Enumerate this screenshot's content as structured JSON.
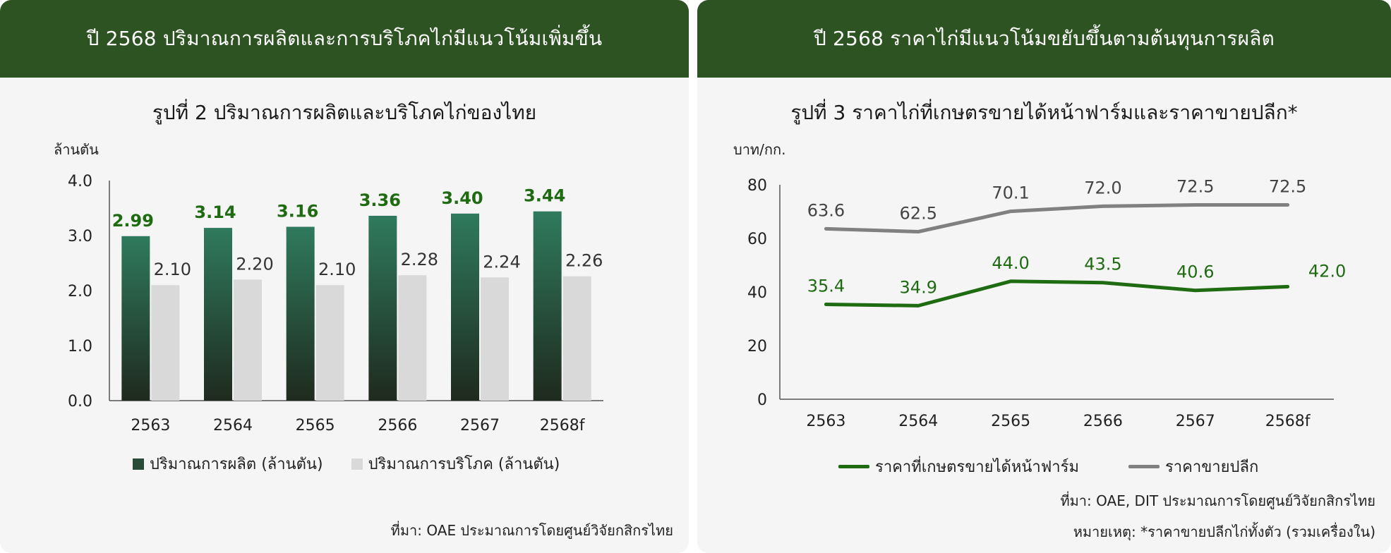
{
  "left": {
    "header": "ปี 2568 ปริมาณการผลิตและการบริโภคไก่มีแนวโน้มเพิ่มขึ้น",
    "figure_title": "รูปที่ 2  ปริมาณการผลิตและบริโภคไก่ของไทย",
    "unit": "ล้านตัน",
    "source": "ที่มา: OAE ประมาณการโดยศูนย์วิจัยกสิกรไทย"
  },
  "right": {
    "header": "ปี 2568 ราคาไก่มีแนวโน้มขยับขึ้นตามต้นทุนการผลิต",
    "figure_title": "รูปที่ 3 ราคาไก่ที่เกษตรขายได้หน้าฟาร์มและราคาขายปลีก*",
    "unit": "บาท/กก.",
    "source": "ที่มา: OAE, DIT ประมาณการโดยศูนย์วิจัยกสิกรไทย",
    "note": "หมายเหตุ: *ราคาขายปลีกไก่ทั้งตัว (รวมเครื่องใน)"
  },
  "chart_data": [
    {
      "type": "bar",
      "title": "รูปที่ 2  ปริมาณการผลิตและบริโภคไก่ของไทย",
      "ylabel": "ล้านตัน",
      "categories": [
        "2563",
        "2564",
        "2565",
        "2566",
        "2567",
        "2568f"
      ],
      "ylim": [
        0,
        4
      ],
      "yticks": [
        "0.0",
        "1.0",
        "2.0",
        "3.0",
        "4.0"
      ],
      "series": [
        {
          "name": "ปริมาณการผลิต (ล้านตัน)",
          "values": [
            2.99,
            3.14,
            3.16,
            3.36,
            3.4,
            3.44
          ],
          "labels": [
            "2.99",
            "3.14",
            "3.16",
            "3.36",
            "3.40",
            "3.44"
          ],
          "color": "#2f7a5e",
          "label_color": "#1e6b12"
        },
        {
          "name": "ปริมาณการบริโภค (ล้านตัน)",
          "values": [
            2.1,
            2.2,
            2.1,
            2.28,
            2.24,
            2.26
          ],
          "labels": [
            "2.10",
            "2.20",
            "2.10",
            "2.28",
            "2.24",
            "2.26"
          ],
          "color": "#d9d9d9",
          "label_color": "#333333"
        }
      ],
      "grid": false,
      "legend": "bottom"
    },
    {
      "type": "line",
      "title": "รูปที่ 3 ราคาไก่ที่เกษตรขายได้หน้าฟาร์มและราคาขายปลีก*",
      "ylabel": "บาท/กก.",
      "categories": [
        "2563",
        "2564",
        "2565",
        "2566",
        "2567",
        "2568f"
      ],
      "ylim": [
        0,
        80
      ],
      "yticks": [
        "0",
        "20",
        "40",
        "60",
        "80"
      ],
      "series": [
        {
          "name": "ราคาที่เกษตรขายได้หน้าฟาร์ม",
          "values": [
            35.4,
            34.9,
            44.0,
            43.5,
            40.6,
            42.0
          ],
          "labels": [
            "35.4",
            "34.9",
            "44.0",
            "43.5",
            "40.6",
            "42.0"
          ],
          "color": "#1e6b12"
        },
        {
          "name": "ราคาขายปลีก",
          "values": [
            63.6,
            62.5,
            70.1,
            72.0,
            72.5,
            72.5
          ],
          "labels": [
            "63.6",
            "62.5",
            "70.1",
            "72.0",
            "72.5",
            "72.5"
          ],
          "color": "#808080"
        }
      ],
      "grid": false,
      "legend": "bottom"
    }
  ]
}
